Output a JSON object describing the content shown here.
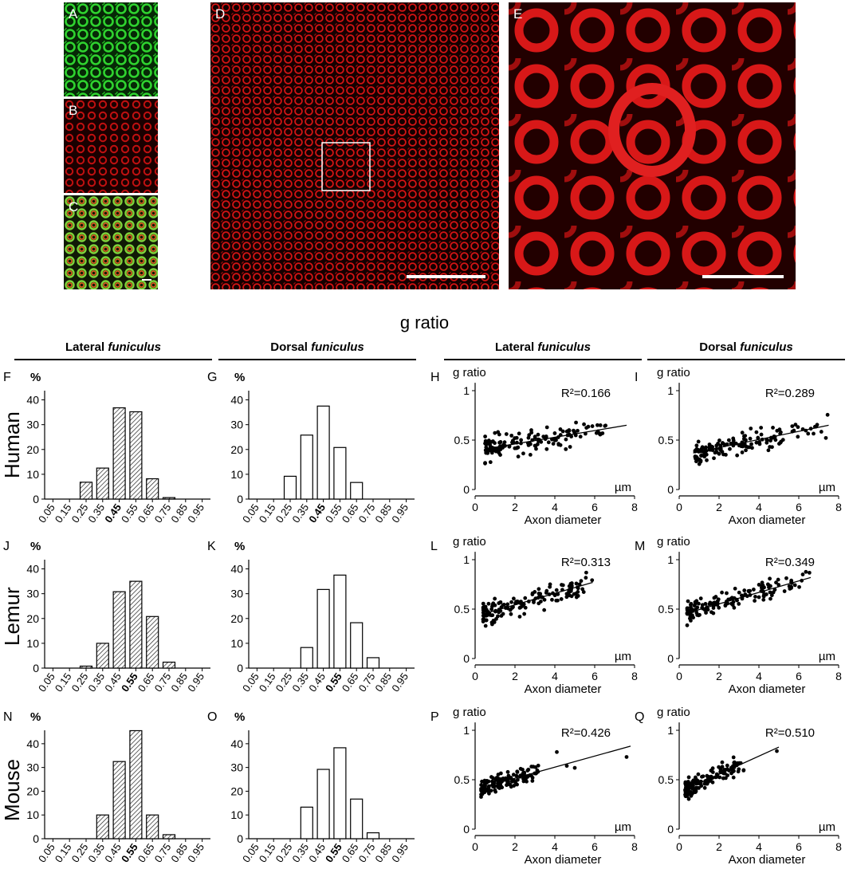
{
  "image_panels": [
    {
      "letter": "A",
      "color": "green"
    },
    {
      "letter": "B",
      "color": "red"
    },
    {
      "letter": "C",
      "color": "merge"
    },
    {
      "letter": "D",
      "color": "red"
    },
    {
      "letter": "E",
      "color": "red"
    }
  ],
  "title": "g ratio",
  "columns": [
    {
      "label": "Lateral",
      "emph": "funiculus"
    },
    {
      "label": "Dorsal",
      "emph": "funiculus"
    },
    {
      "label": "Lateral",
      "emph": "funiculus"
    },
    {
      "label": "Dorsal",
      "emph": "funiculus"
    }
  ],
  "species": [
    "Human",
    "Lemur",
    "Mouse"
  ],
  "chart_data": [
    {
      "panel": "F",
      "type": "bar",
      "species": "Human",
      "region": "Lateral funiculus",
      "ylabel": "%",
      "ylim": [
        0,
        45
      ],
      "hatched": true,
      "categories": [
        "0.05",
        "0.15",
        "0.25",
        "0.35",
        "0.45",
        "0.55",
        "0.65",
        "0.75",
        "0.85",
        "0.95"
      ],
      "bold_category": "0.45",
      "values": [
        0,
        0,
        6.8,
        12.5,
        36.8,
        35.2,
        8.2,
        0.6,
        0,
        0
      ]
    },
    {
      "panel": "G",
      "type": "bar",
      "species": "Human",
      "region": "Dorsal funiculus",
      "ylabel": "%",
      "ylim": [
        0,
        45
      ],
      "hatched": false,
      "categories": [
        "0.05",
        "0.15",
        "0.25",
        "0.35",
        "0.45",
        "0.55",
        "0.65",
        "0.75",
        "0.85",
        "0.95"
      ],
      "bold_category": "0.45",
      "values": [
        0,
        0,
        9.2,
        25.8,
        37.5,
        20.8,
        6.7,
        0,
        0,
        0
      ]
    },
    {
      "panel": "H",
      "type": "scatter",
      "species": "Human",
      "region": "Lateral funiculus",
      "ylabel": "g ratio",
      "xlabel": "Axon diameter",
      "xunit": "µm",
      "xlim": [
        0,
        8
      ],
      "ylim": [
        0,
        1
      ],
      "r2": "R²=0.166",
      "fit": {
        "x": [
          0.5,
          7.6
        ],
        "y": [
          0.41,
          0.65
        ]
      },
      "points": {
        "n": 150,
        "x_range": [
          0.5,
          6.6
        ],
        "y_mean_at_x_min": 0.41,
        "slope": 0.034,
        "spread": 0.09,
        "seed": 11
      }
    },
    {
      "panel": "I",
      "type": "scatter",
      "species": "Human",
      "region": "Dorsal funiculus",
      "ylabel": "g ratio",
      "xlabel": "Axon diameter",
      "xunit": "µm",
      "xlim": [
        0,
        8
      ],
      "ylim": [
        0,
        1
      ],
      "r2": "R²=0.289",
      "fit": {
        "x": [
          0.7,
          7.5
        ],
        "y": [
          0.37,
          0.65
        ]
      },
      "points": {
        "n": 150,
        "x_range": [
          0.8,
          7.5
        ],
        "y_mean_at_x_min": 0.37,
        "slope": 0.041,
        "spread": 0.08,
        "seed": 23
      }
    },
    {
      "panel": "J",
      "type": "bar",
      "species": "Lemur",
      "region": "Lateral funiculus",
      "ylabel": "%",
      "ylim": [
        0,
        45
      ],
      "hatched": true,
      "categories": [
        "0.05",
        "0.15",
        "0.25",
        "0.35",
        "0.45",
        "0.55",
        "0.65",
        "0.75",
        "0.85",
        "0.95"
      ],
      "bold_category": "0.55",
      "values": [
        0,
        0,
        0.8,
        10,
        30.8,
        35,
        20.8,
        2.4,
        0,
        0
      ]
    },
    {
      "panel": "K",
      "type": "bar",
      "species": "Lemur",
      "region": "Dorsal funiculus",
      "ylabel": "%",
      "ylim": [
        0,
        45
      ],
      "hatched": false,
      "categories": [
        "0.05",
        "0.15",
        "0.25",
        "0.35",
        "0.45",
        "0.55",
        "0.65",
        "0.75",
        "0.85",
        "0.95"
      ],
      "bold_category": "0.55",
      "values": [
        0,
        0,
        0,
        8.3,
        31.7,
        37.5,
        18.3,
        4.2,
        0,
        0
      ]
    },
    {
      "panel": "L",
      "type": "scatter",
      "species": "Lemur",
      "region": "Lateral funiculus",
      "ylabel": "g ratio",
      "xlabel": "Axon diameter",
      "xunit": "µm",
      "xlim": [
        0,
        8
      ],
      "ylim": [
        0,
        1
      ],
      "r2": "R²=0.313",
      "fit": {
        "x": [
          0.4,
          5.9
        ],
        "y": [
          0.45,
          0.77
        ]
      },
      "points": {
        "n": 150,
        "x_range": [
          0.4,
          5.9
        ],
        "y_mean_at_x_min": 0.45,
        "slope": 0.058,
        "spread": 0.08,
        "seed": 37
      }
    },
    {
      "panel": "M",
      "type": "scatter",
      "species": "Lemur",
      "region": "Dorsal funiculus",
      "ylabel": "g ratio",
      "xlabel": "Axon diameter",
      "xunit": "µm",
      "xlim": [
        0,
        8
      ],
      "ylim": [
        0,
        1
      ],
      "r2": "R²=0.349",
      "fit": {
        "x": [
          0.4,
          6.6
        ],
        "y": [
          0.46,
          0.82
        ]
      },
      "points": {
        "n": 150,
        "x_range": [
          0.4,
          6.6
        ],
        "y_mean_at_x_min": 0.46,
        "slope": 0.058,
        "spread": 0.07,
        "seed": 41
      }
    },
    {
      "panel": "N",
      "type": "bar",
      "species": "Mouse",
      "region": "Lateral funiculus",
      "ylabel": "%",
      "ylim": [
        0,
        47
      ],
      "hatched": true,
      "categories": [
        "0.05",
        "0.15",
        "0.25",
        "0.35",
        "0.45",
        "0.55",
        "0.65",
        "0.75",
        "0.85",
        "0.95"
      ],
      "bold_category": "0.55",
      "values": [
        0,
        0,
        0,
        10,
        32.5,
        45.5,
        10,
        1.7,
        0,
        0
      ]
    },
    {
      "panel": "O",
      "type": "bar",
      "species": "Mouse",
      "region": "Dorsal funiculus",
      "ylabel": "%",
      "ylim": [
        0,
        47
      ],
      "hatched": false,
      "categories": [
        "0.05",
        "0.15",
        "0.25",
        "0.35",
        "0.45",
        "0.55",
        "0.65",
        "0.75",
        "0.85",
        "0.95"
      ],
      "bold_category": "0.55",
      "values": [
        0,
        0,
        0,
        13.3,
        29.2,
        38.3,
        16.7,
        2.5,
        0,
        0
      ]
    },
    {
      "panel": "P",
      "type": "scatter",
      "species": "Mouse",
      "region": "Lateral funiculus",
      "ylabel": "g ratio",
      "xlabel": "Axon diameter",
      "xunit": "µm",
      "xlim": [
        0,
        8
      ],
      "ylim": [
        0,
        1
      ],
      "r2": "R²=0.426",
      "fit": {
        "x": [
          0.3,
          7.8
        ],
        "y": [
          0.42,
          0.84
        ]
      },
      "points": {
        "n": 140,
        "x_range": [
          0.3,
          3.2
        ],
        "y_mean_at_x_min": 0.42,
        "slope": 0.056,
        "spread": 0.06,
        "seed": 53
      },
      "extra_points": [
        {
          "x": 4.1,
          "y": 0.78
        },
        {
          "x": 4.6,
          "y": 0.64
        },
        {
          "x": 5.0,
          "y": 0.62
        },
        {
          "x": 7.6,
          "y": 0.73
        }
      ]
    },
    {
      "panel": "Q",
      "type": "scatter",
      "species": "Mouse",
      "region": "Dorsal funiculus",
      "ylabel": "g ratio",
      "xlabel": "Axon diameter",
      "xunit": "µm",
      "xlim": [
        0,
        8
      ],
      "ylim": [
        0,
        1
      ],
      "r2": "R²=0.510",
      "fit": {
        "x": [
          0.3,
          5.0
        ],
        "y": [
          0.4,
          0.83
        ]
      },
      "points": {
        "n": 140,
        "x_range": [
          0.3,
          3.3
        ],
        "y_mean_at_x_min": 0.4,
        "slope": 0.092,
        "spread": 0.06,
        "seed": 67
      },
      "extra_points": [
        {
          "x": 4.9,
          "y": 0.79
        }
      ]
    }
  ]
}
